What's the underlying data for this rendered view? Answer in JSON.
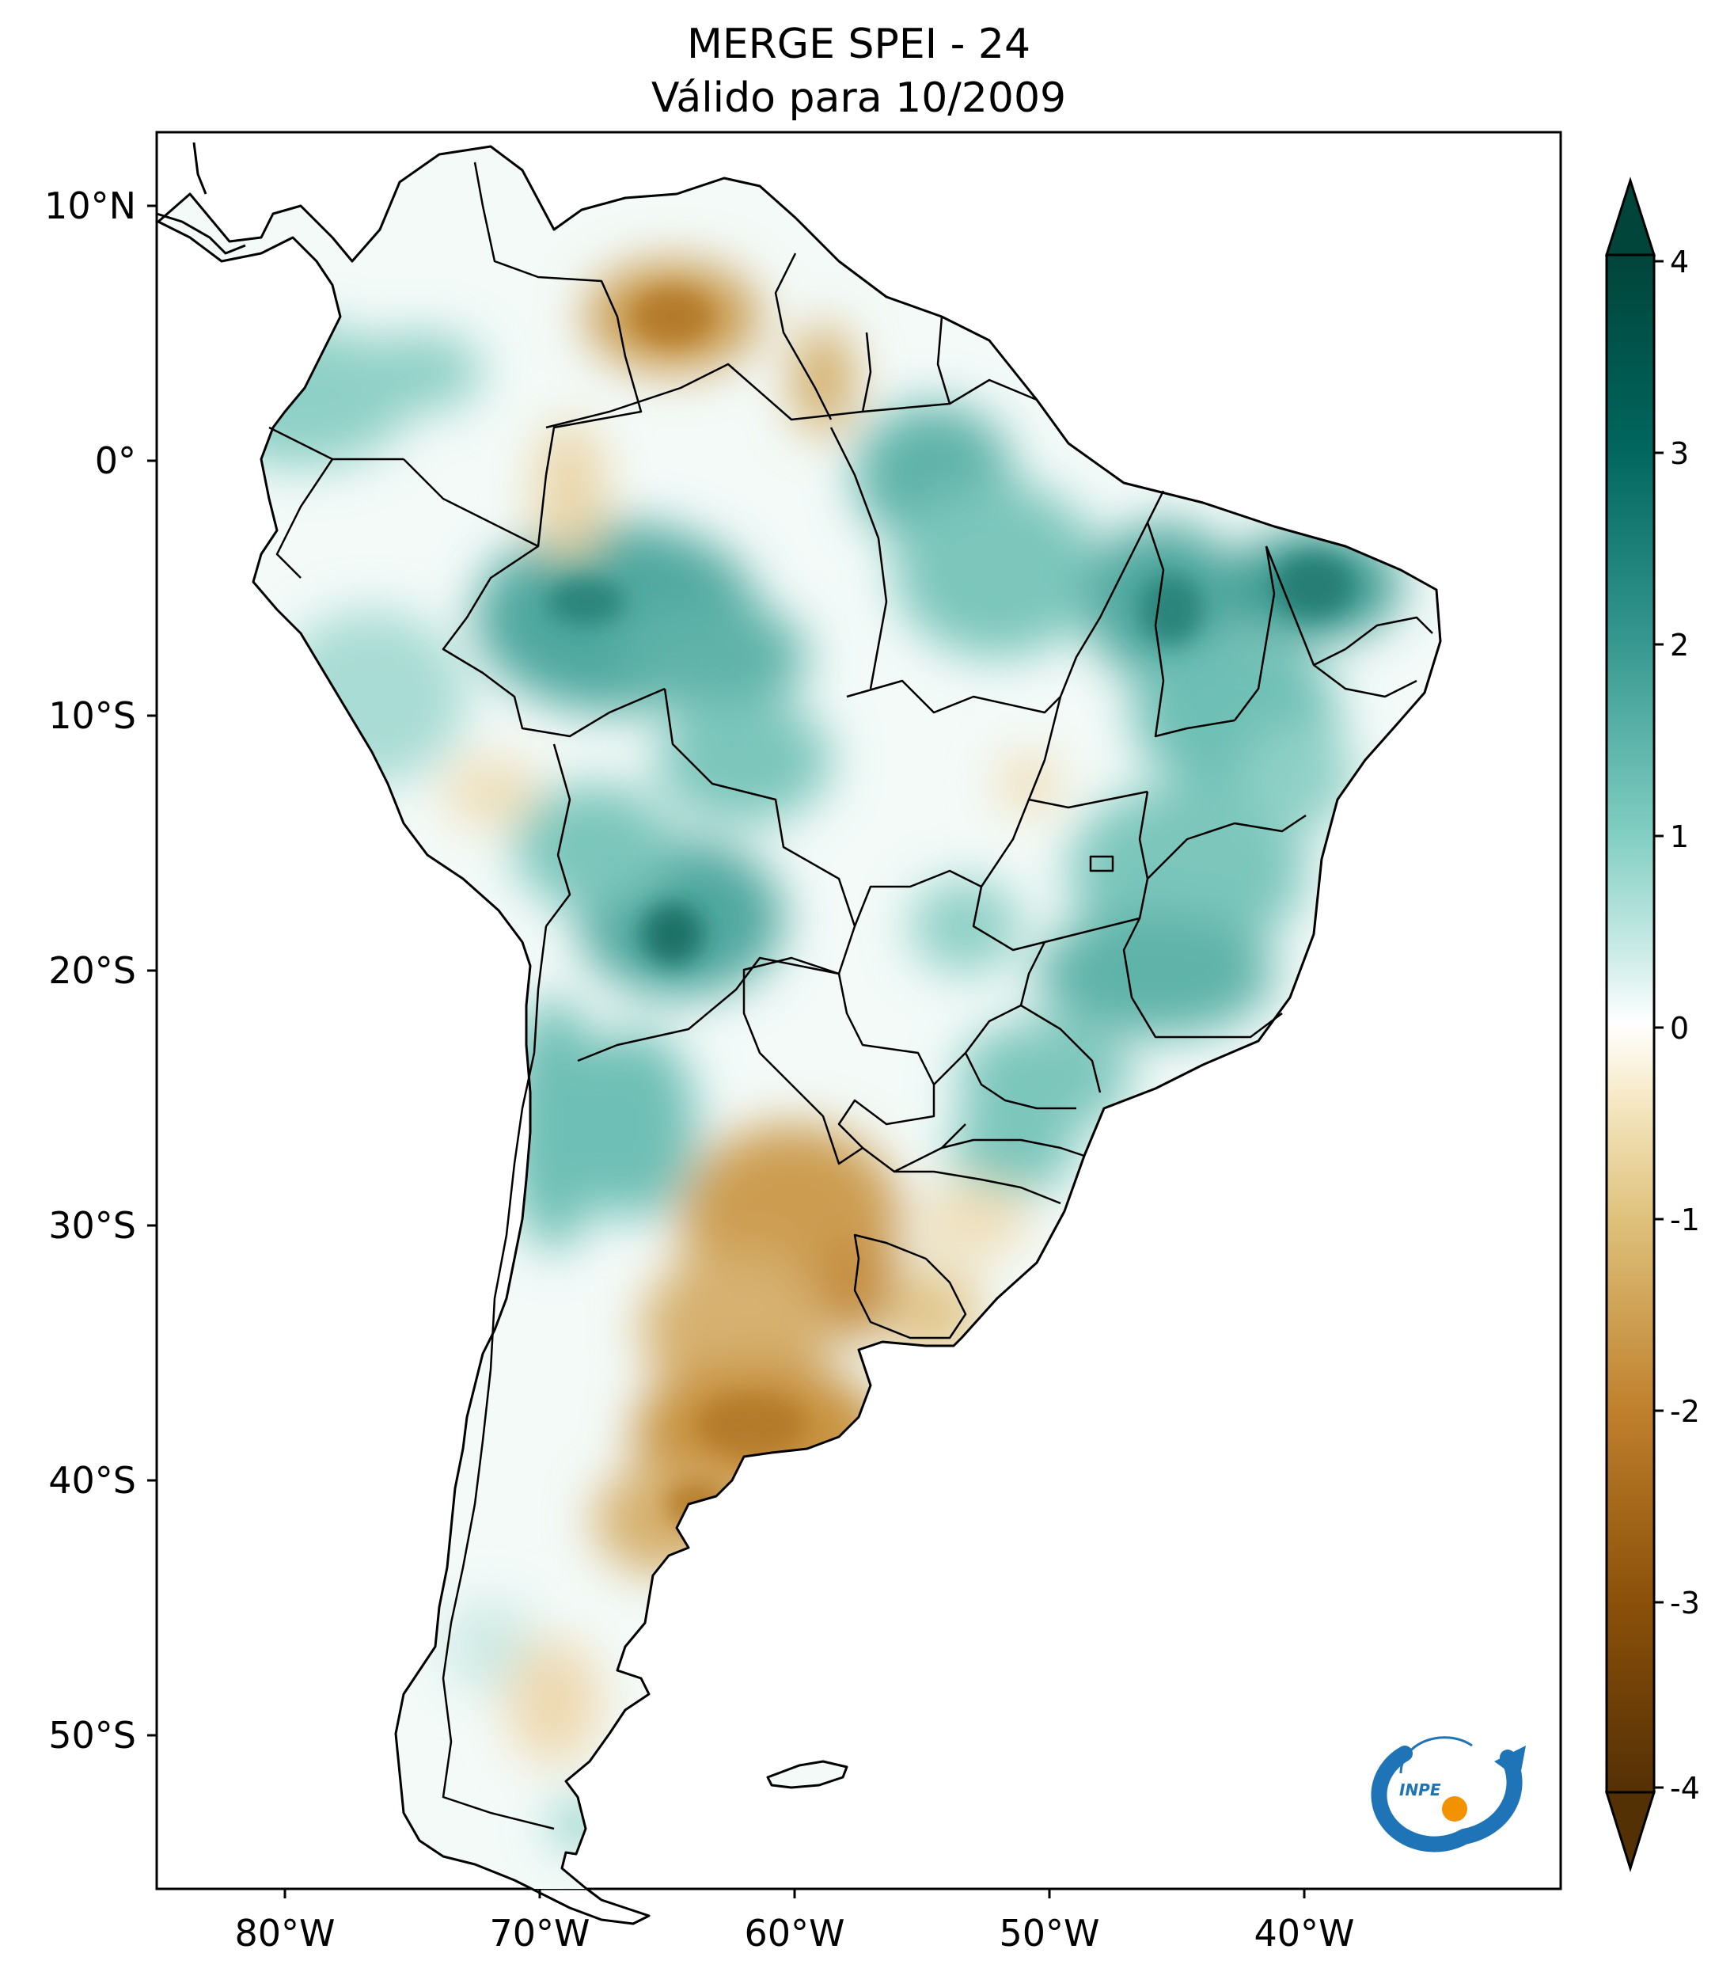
{
  "title": {
    "line1": "MERGE   SPEI - 24",
    "line2": "Válido para 10/2009"
  },
  "map": {
    "region": "South America",
    "lat_ticks": [
      {
        "value": 10,
        "label": "10°N"
      },
      {
        "value": 0,
        "label": "0°"
      },
      {
        "value": -10,
        "label": "10°S"
      },
      {
        "value": -20,
        "label": "20°S"
      },
      {
        "value": -30,
        "label": "30°S"
      },
      {
        "value": -40,
        "label": "40°S"
      },
      {
        "value": -50,
        "label": "50°S"
      }
    ],
    "lon_ticks": [
      {
        "value": -80,
        "label": "80°W"
      },
      {
        "value": -70,
        "label": "70°W"
      },
      {
        "value": -60,
        "label": "60°W"
      },
      {
        "value": -50,
        "label": "50°W"
      },
      {
        "value": -40,
        "label": "40°W"
      }
    ],
    "lon_range": [
      -85,
      -30
    ],
    "lat_range": [
      -56,
      13
    ]
  },
  "colorbar": {
    "ticks": [
      "4",
      "3",
      "2",
      "1",
      "0",
      "-1",
      "-2",
      "-3",
      "-4"
    ],
    "range": [
      -4,
      4
    ],
    "extend": "both",
    "colors": {
      "high": "#01443a",
      "mid_high": "#35978f",
      "light_high": "#c7eae5",
      "zero": "#ffffff",
      "light_low": "#f6e8c3",
      "mid_low": "#bf812d",
      "low": "#543005"
    }
  },
  "logo": {
    "text": "INPE",
    "colors": {
      "arc": "#1f74b8",
      "dot": "#f39200"
    }
  }
}
